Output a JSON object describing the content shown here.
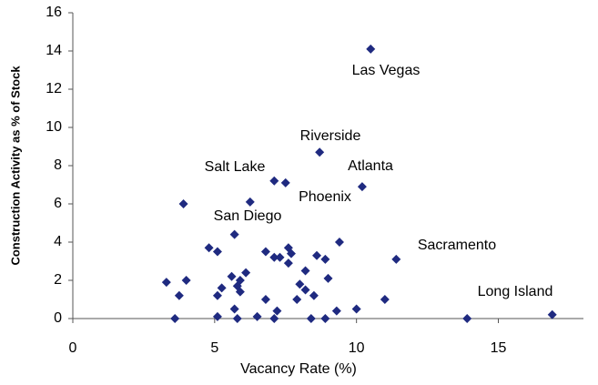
{
  "chart_data": {
    "type": "scatter",
    "x_label": "Vacancy Rate (%)",
    "y_label": "Construction Activity as % of Stock",
    "color": "#1f2a80",
    "xlim": [
      0,
      18
    ],
    "xticks": [
      0,
      5,
      10,
      15
    ],
    "ylim": [
      0,
      16
    ],
    "yticks": [
      0,
      2,
      4,
      6,
      8,
      10,
      12,
      14,
      16
    ],
    "x": [
      10.5,
      8.7,
      10.2,
      7.1,
      7.5,
      6.25,
      3.9,
      5.7,
      4.8,
      5.1,
      6.8,
      7.6,
      7.7,
      7.1,
      7.3,
      7.6,
      8.6,
      8.9,
      9.4,
      11.4,
      8.2,
      8.0,
      8.2,
      7.9,
      8.5,
      9.0,
      3.3,
      4.0,
      3.75,
      3.6,
      5.1,
      5.25,
      5.6,
      5.9,
      6.1,
      5.8,
      5.9,
      5.7,
      5.8,
      5.1,
      6.5,
      6.8,
      7.2,
      7.1,
      8.4,
      9.3,
      8.9,
      10.0,
      11.0,
      13.9,
      16.9
    ],
    "values": [
      14.1,
      8.7,
      6.9,
      7.2,
      7.1,
      6.1,
      6.0,
      4.4,
      3.7,
      3.5,
      3.5,
      3.7,
      3.4,
      3.2,
      3.2,
      2.9,
      3.3,
      3.1,
      4.0,
      3.1,
      2.5,
      1.8,
      1.5,
      1.0,
      1.2,
      2.1,
      1.9,
      2.0,
      1.2,
      0,
      1.2,
      1.6,
      2.2,
      2.0,
      2.4,
      1.7,
      1.4,
      0.5,
      0,
      0.1,
      0.1,
      1.0,
      0.4,
      0,
      0,
      0.4,
      0,
      0.5,
      1.0,
      0,
      0.2
    ],
    "annotations": [
      "Las Vegas",
      "Riverside",
      "Atlanta",
      "Salt Lake",
      "Phoenix",
      "San Diego",
      "Sacramento",
      "Long Island"
    ]
  }
}
